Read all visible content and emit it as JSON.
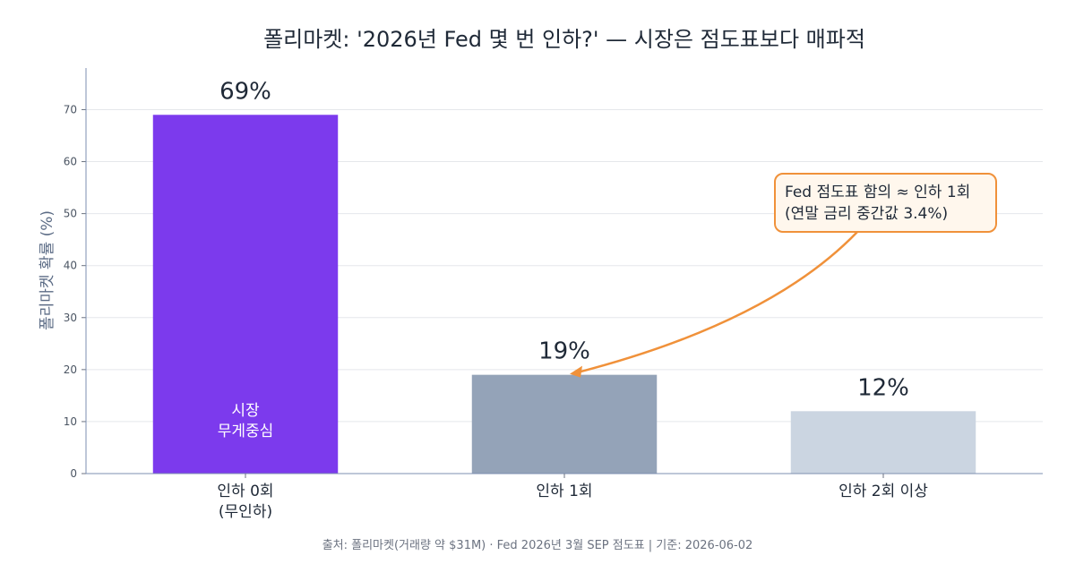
{
  "chart_data": {
    "type": "bar",
    "title": "폴리마켓: '2026년 Fed 몇 번 인하?' — 시장은 점도표보다 매파적",
    "categories": [
      [
        "인하 0회",
        "(무인하)"
      ],
      [
        "인하 1회"
      ],
      [
        "인하 2회 이상"
      ]
    ],
    "values": [
      69,
      19,
      12
    ],
    "value_labels": [
      "69%",
      "19%",
      "12%"
    ],
    "colors": [
      "#7c3aed",
      "#94a3b8",
      "#cbd5e1"
    ],
    "ylabel": "폴리마켓 확률 (%)",
    "ylim": [
      0,
      78
    ],
    "yticks": [
      0,
      10,
      20,
      30,
      40,
      50,
      60,
      70
    ],
    "grid": true,
    "inbar_label": [
      "시장",
      "무게중심"
    ],
    "annotation": {
      "lines": [
        "Fed 점도표 함의 ≈ 인하 1회",
        "(연말 금리 중간값 3.4%)"
      ],
      "border_color": "#f0913a",
      "fill_color": "#fff7ed",
      "points_to_category": 1
    },
    "footer": "출처: 폴리마켓(거래량 약 $31M) · Fed 2026년 3월 SEP 점도표 | 기준: 2026-06-02"
  }
}
